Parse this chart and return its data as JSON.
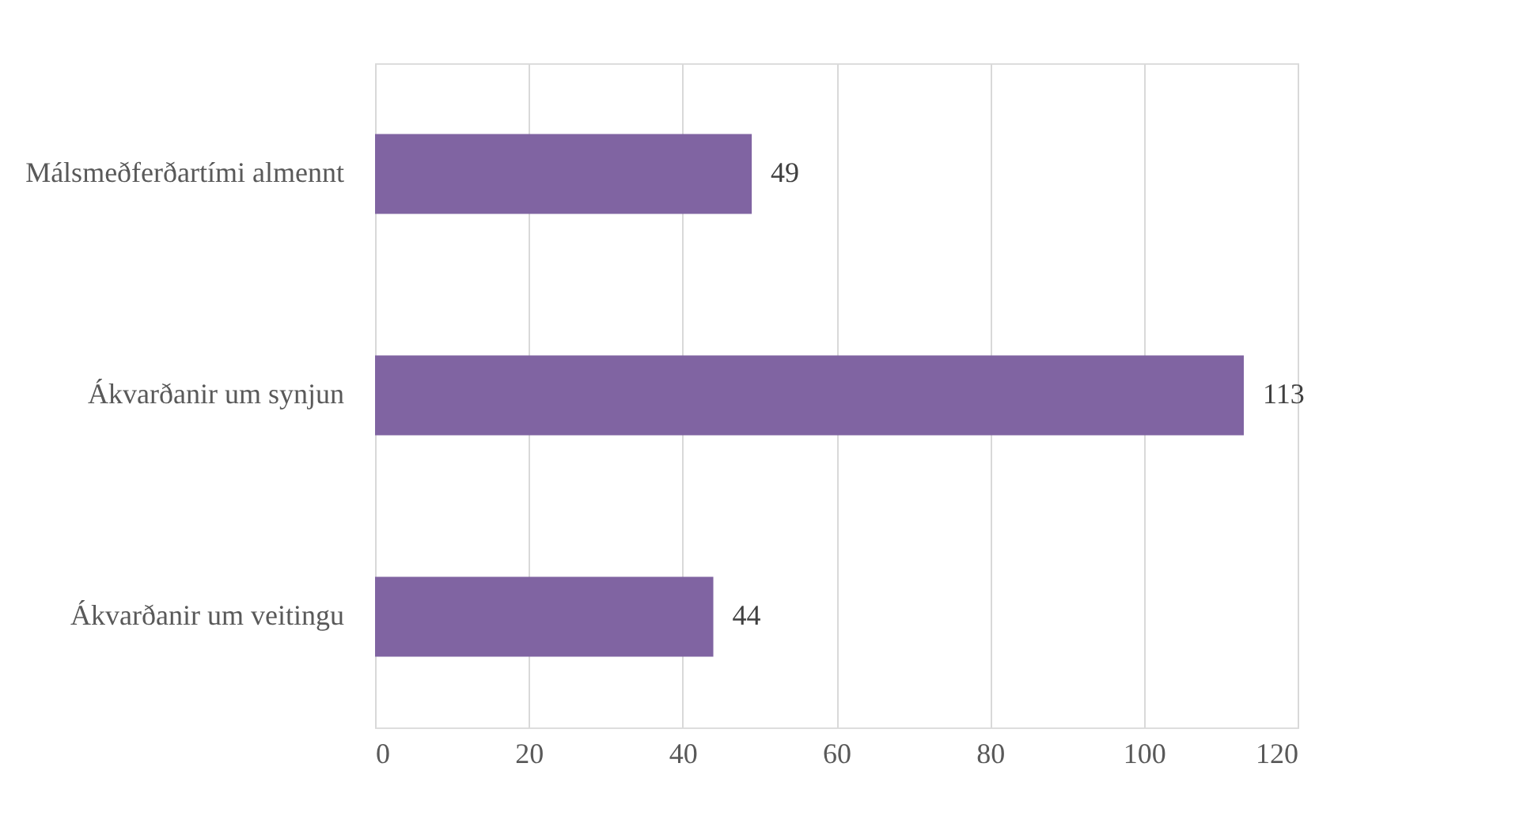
{
  "chart_data": {
    "type": "bar",
    "orientation": "horizontal",
    "categories": [
      "Málsmeðferðartími almennt",
      "Ákvarðanir um synjun",
      "Ákvarðanir um veitingu"
    ],
    "values": [
      49,
      113,
      44
    ],
    "color": "#8064a2",
    "xlim": [
      0,
      120
    ],
    "xticks": [
      0,
      20,
      40,
      60,
      80,
      100,
      120
    ],
    "grid": "x",
    "data_labels": true
  }
}
